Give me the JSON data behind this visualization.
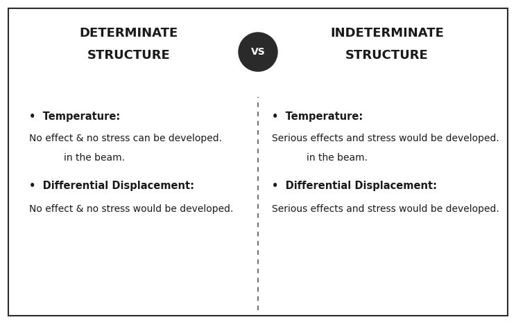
{
  "bg_color": "#ffffff",
  "border_color": "#2a2a2a",
  "text_color": "#1a1a1a",
  "divider_color": "#555555",
  "vs_bg_color": "#2a2a2a",
  "vs_text_color": "#ffffff",
  "left_header_line1": "DETERMINATE",
  "left_header_line2": "STRUCTURE",
  "right_header_line1": "INDETERMINATE",
  "right_header_line2": "STRUCTURE",
  "vs_text": "VS",
  "left_items": [
    {
      "bullet_label": "Temperature:",
      "body_line1": "No effect & no stress can be developed.",
      "body_line2": "in the beam."
    },
    {
      "bullet_label": "Differential Displacement:",
      "body_line1": "No effect & no stress would be developed.",
      "body_line2": ""
    }
  ],
  "right_items": [
    {
      "bullet_label": "Temperature:",
      "body_line1": "Serious effects and stress would be developed.",
      "body_line2": "in the beam."
    },
    {
      "bullet_label": "Differential Displacement:",
      "body_line1": "Serious effects and stress would be developed.",
      "body_line2": ""
    }
  ],
  "figsize": [
    7.44,
    4.68
  ],
  "dpi": 100,
  "header_fontsize": 13,
  "bullet_fontsize": 10.5,
  "body_fontsize": 10,
  "vs_fontsize": 10
}
